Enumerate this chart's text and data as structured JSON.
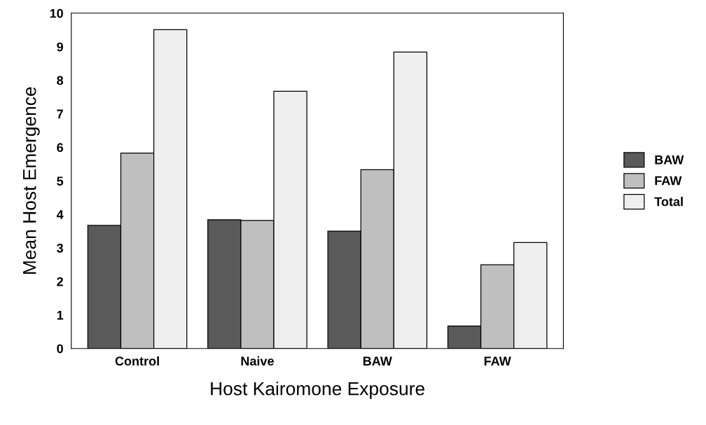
{
  "chart_data": {
    "type": "bar",
    "xlabel": "Host Kairomone Exposure",
    "ylabel": "Mean Host Emergence",
    "categories": [
      "Control",
      "Naive",
      "BAW",
      "FAW"
    ],
    "series": [
      {
        "name": "BAW",
        "color": "#5a5a5a",
        "values": [
          3.67,
          3.84,
          3.5,
          0.67
        ]
      },
      {
        "name": "FAW",
        "color": "#bfbfbf",
        "values": [
          5.83,
          3.82,
          5.33,
          2.5
        ]
      },
      {
        "name": "Total",
        "color": "#efefef",
        "values": [
          9.51,
          7.67,
          8.84,
          3.16
        ]
      }
    ],
    "ylim": [
      0,
      10
    ],
    "yticks": [
      0,
      1,
      2,
      3,
      4,
      5,
      6,
      7,
      8,
      9,
      10
    ],
    "grid": false,
    "legend": "right"
  }
}
